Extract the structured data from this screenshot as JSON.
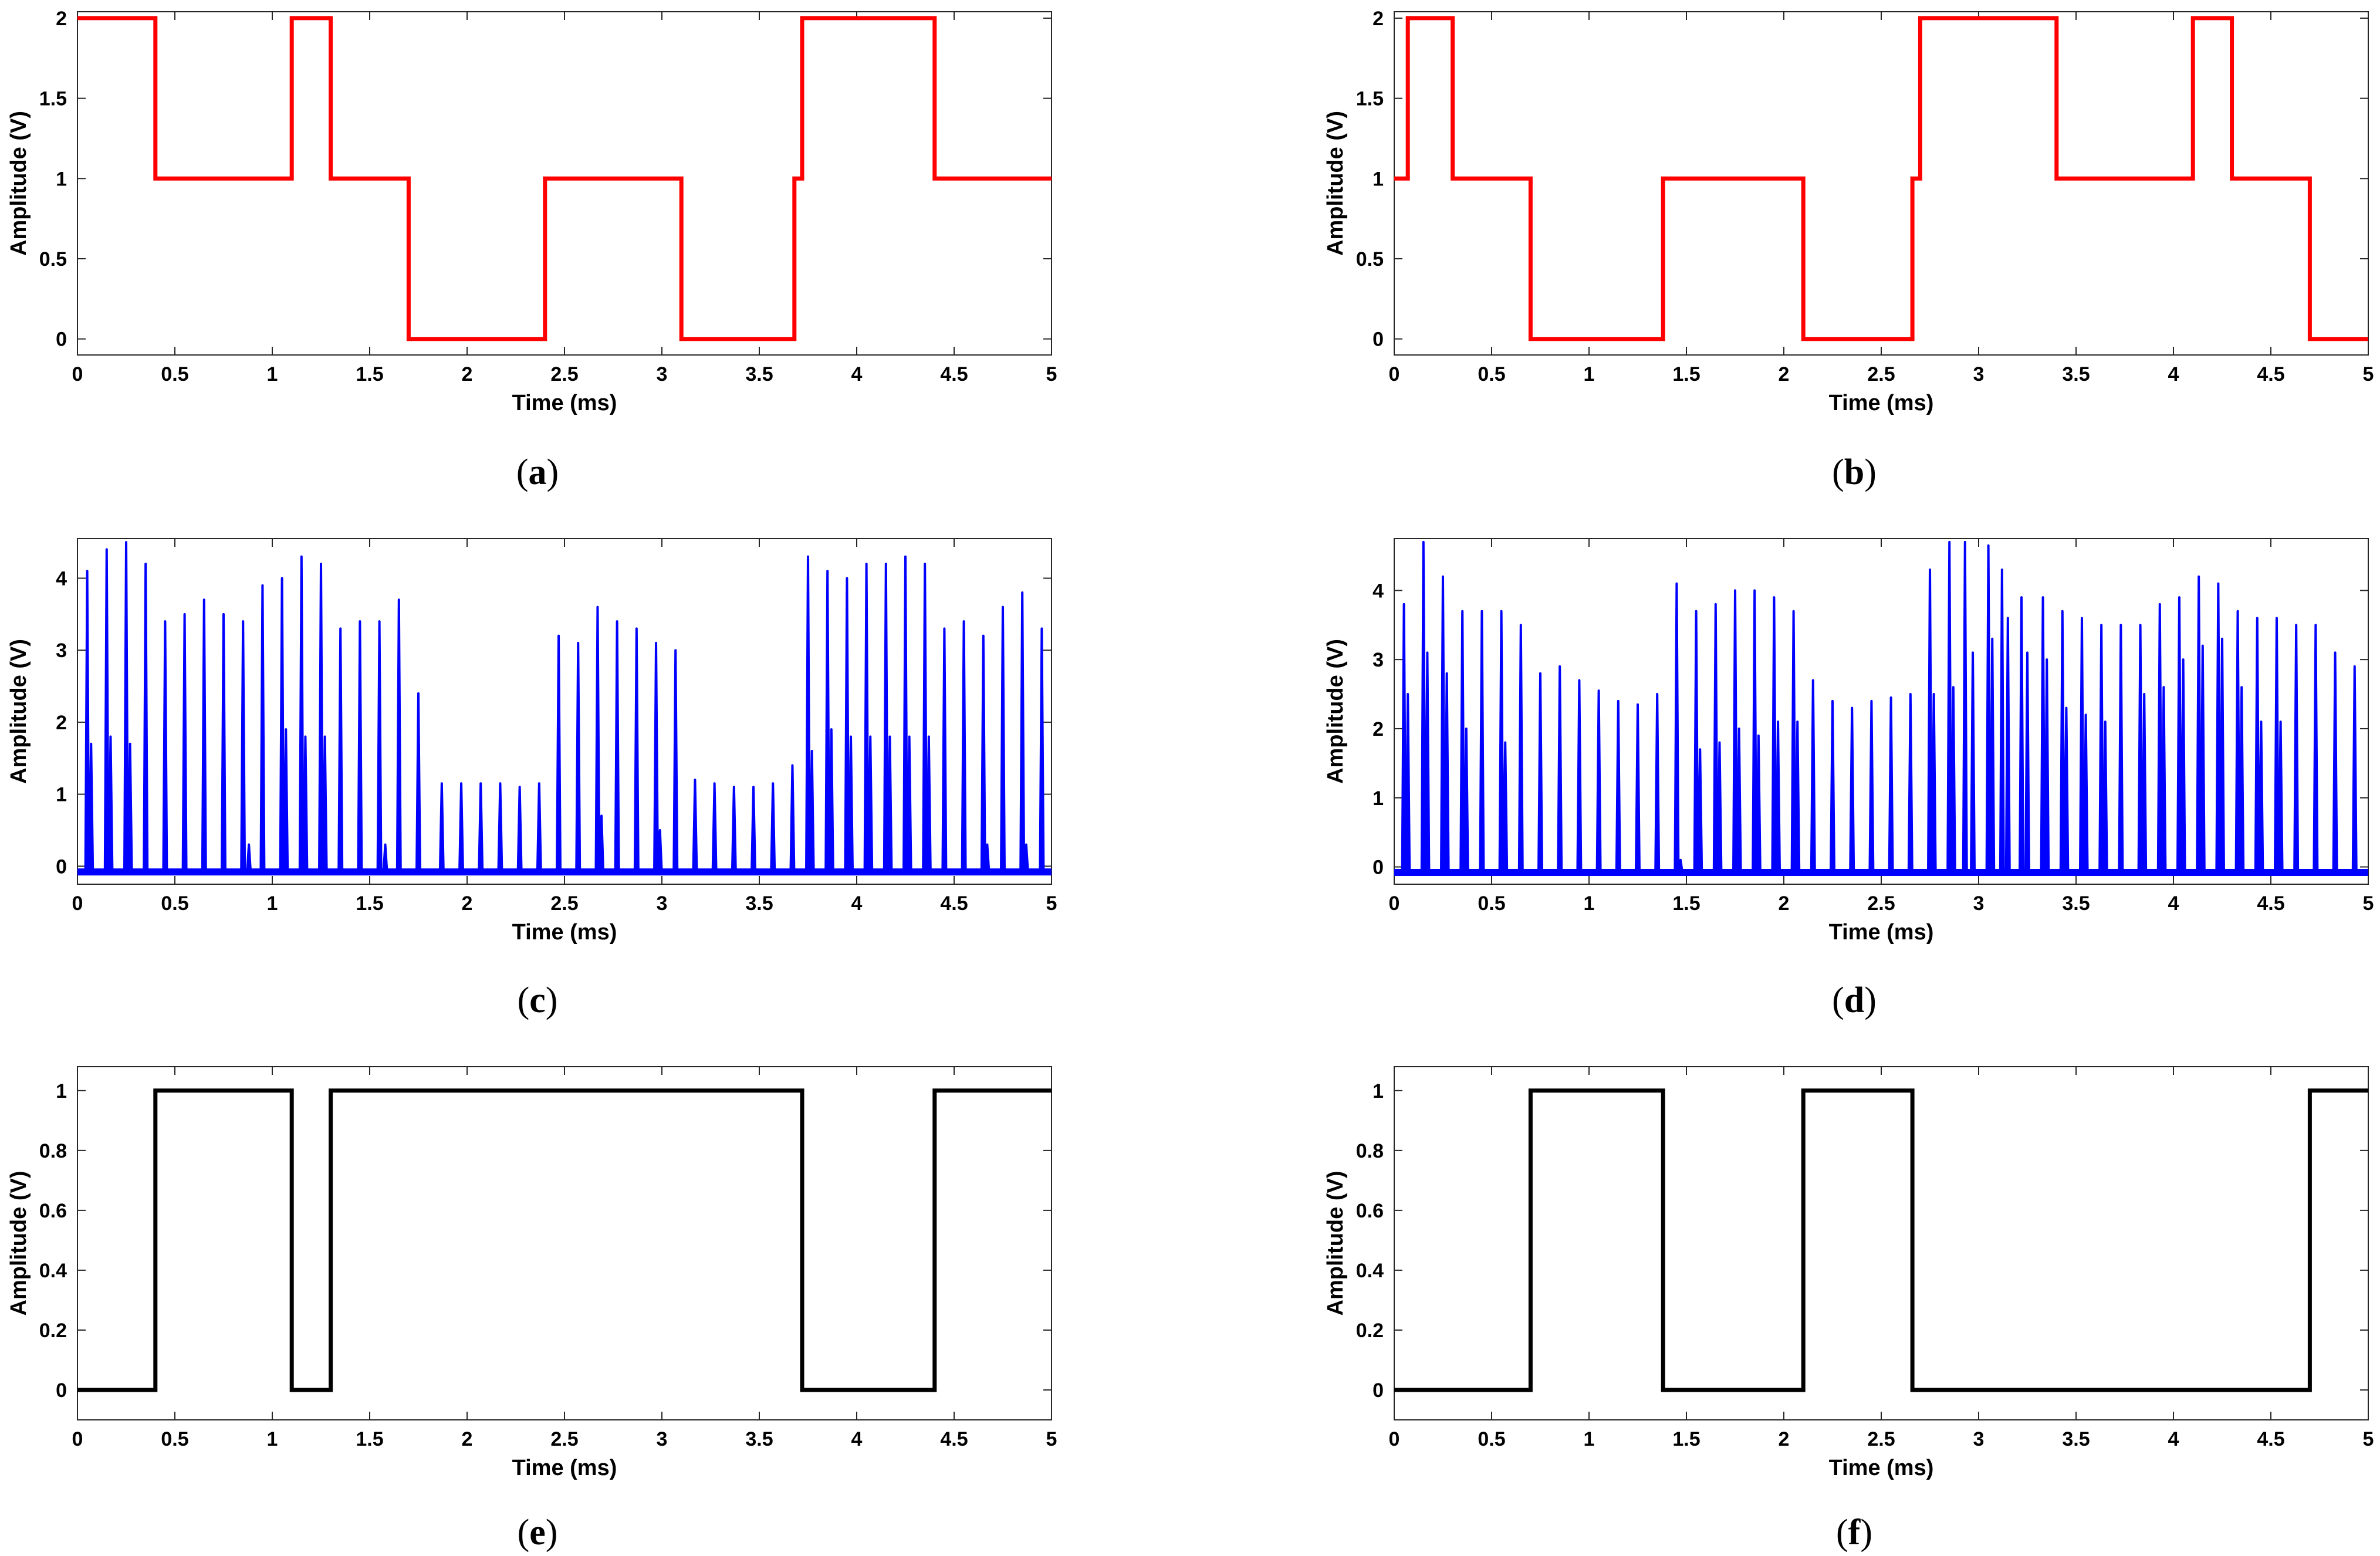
{
  "figure": {
    "captions": [
      "(a)",
      "(b)",
      "(c)",
      "(d)",
      "(e)",
      "(f)"
    ]
  },
  "chart_data": [
    {
      "id": "a",
      "type": "line",
      "caption": "(a)",
      "xlabel": "Time (ms)",
      "ylabel": "Amplitude (V)",
      "xlim": [
        0,
        5
      ],
      "ylim": [
        -0.1,
        2.04
      ],
      "grid": false,
      "xticks": [
        "0",
        "0.5",
        "1",
        "1.5",
        "2",
        "2.5",
        "3",
        "3.5",
        "4",
        "4.5",
        "5"
      ],
      "yticks": [
        "0",
        "0.5",
        "1",
        "1.5",
        "2"
      ],
      "color": "#ff0000",
      "stroke": "step",
      "series": [
        {
          "name": "a",
          "x": [
            0,
            0.4,
            0.4,
            1.1,
            1.1,
            1.3,
            1.3,
            1.7,
            1.7,
            2.4,
            2.4,
            3.1,
            3.1,
            3.68,
            3.68,
            3.72,
            3.72,
            4.4,
            4.4,
            5
          ],
          "y": [
            2,
            2,
            1,
            1,
            2,
            2,
            1,
            1,
            0,
            0,
            1,
            1,
            0,
            0,
            1,
            1,
            2,
            2,
            1,
            1
          ]
        }
      ]
    },
    {
      "id": "b",
      "type": "line",
      "caption": "(b)",
      "xlabel": "Time (ms)",
      "ylabel": "Amplitude (V)",
      "xlim": [
        0,
        5
      ],
      "ylim": [
        -0.1,
        2.04
      ],
      "grid": false,
      "xticks": [
        "0",
        "0.5",
        "1",
        "1.5",
        "2",
        "2.5",
        "3",
        "3.5",
        "4",
        "4.5",
        "5"
      ],
      "yticks": [
        "0",
        "0.5",
        "1",
        "1.5",
        "2"
      ],
      "color": "#ff0000",
      "stroke": "step",
      "series": [
        {
          "name": "b",
          "x": [
            0,
            0.07,
            0.07,
            0.3,
            0.3,
            0.7,
            0.7,
            1.38,
            1.38,
            2.1,
            2.1,
            2.66,
            2.66,
            2.7,
            2.7,
            3.4,
            3.4,
            4.1,
            4.1,
            4.3,
            4.3,
            4.7,
            4.7,
            5
          ],
          "y": [
            1,
            1,
            2,
            2,
            1,
            1,
            0,
            0,
            1,
            1,
            0,
            0,
            1,
            1,
            2,
            2,
            1,
            1,
            2,
            2,
            1,
            1,
            0,
            0
          ]
        }
      ]
    },
    {
      "id": "c",
      "type": "line",
      "caption": "(c)",
      "xlabel": "Time (ms)",
      "ylabel": "Amplitude (V)",
      "xlim": [
        0,
        5
      ],
      "ylim": [
        -0.25,
        4.55
      ],
      "grid": false,
      "xticks": [
        "0",
        "0.5",
        "1",
        "1.5",
        "2",
        "2.5",
        "3",
        "3.5",
        "4",
        "4.5",
        "5"
      ],
      "yticks": [
        "0",
        "1",
        "2",
        "3",
        "4"
      ],
      "color": "#0000ff",
      "stroke": "pulses",
      "baseline": -0.08,
      "pulses": [
        {
          "t": 0.05,
          "v": 4.1
        },
        {
          "t": 0.07,
          "v": 1.7
        },
        {
          "t": 0.15,
          "v": 4.4
        },
        {
          "t": 0.17,
          "v": 1.8
        },
        {
          "t": 0.25,
          "v": 4.5
        },
        {
          "t": 0.27,
          "v": 1.7
        },
        {
          "t": 0.35,
          "v": 4.2
        },
        {
          "t": 0.45,
          "v": 3.4
        },
        {
          "t": 0.55,
          "v": 3.5
        },
        {
          "t": 0.65,
          "v": 3.7
        },
        {
          "t": 0.75,
          "v": 3.5
        },
        {
          "t": 0.85,
          "v": 3.4
        },
        {
          "t": 0.88,
          "v": 0.3
        },
        {
          "t": 0.95,
          "v": 3.9
        },
        {
          "t": 1.05,
          "v": 4.0
        },
        {
          "t": 1.07,
          "v": 1.9
        },
        {
          "t": 1.15,
          "v": 4.3
        },
        {
          "t": 1.17,
          "v": 1.8
        },
        {
          "t": 1.25,
          "v": 4.2
        },
        {
          "t": 1.27,
          "v": 1.8
        },
        {
          "t": 1.35,
          "v": 3.3
        },
        {
          "t": 1.45,
          "v": 3.4
        },
        {
          "t": 1.55,
          "v": 3.4
        },
        {
          "t": 1.58,
          "v": 0.3
        },
        {
          "t": 1.65,
          "v": 3.7
        },
        {
          "t": 1.75,
          "v": 2.4
        },
        {
          "t": 1.87,
          "v": 1.15
        },
        {
          "t": 1.97,
          "v": 1.15
        },
        {
          "t": 2.07,
          "v": 1.15
        },
        {
          "t": 2.17,
          "v": 1.15
        },
        {
          "t": 2.27,
          "v": 1.1
        },
        {
          "t": 2.37,
          "v": 1.15
        },
        {
          "t": 2.47,
          "v": 3.2
        },
        {
          "t": 2.57,
          "v": 3.1
        },
        {
          "t": 2.67,
          "v": 3.6
        },
        {
          "t": 2.69,
          "v": 0.7
        },
        {
          "t": 2.77,
          "v": 3.4
        },
        {
          "t": 2.87,
          "v": 3.3
        },
        {
          "t": 2.97,
          "v": 3.1
        },
        {
          "t": 2.99,
          "v": 0.5
        },
        {
          "t": 3.07,
          "v": 3.0
        },
        {
          "t": 3.17,
          "v": 1.2
        },
        {
          "t": 3.27,
          "v": 1.15
        },
        {
          "t": 3.37,
          "v": 1.1
        },
        {
          "t": 3.47,
          "v": 1.1
        },
        {
          "t": 3.57,
          "v": 1.15
        },
        {
          "t": 3.67,
          "v": 1.4
        },
        {
          "t": 3.75,
          "v": 4.3
        },
        {
          "t": 3.77,
          "v": 1.6
        },
        {
          "t": 3.85,
          "v": 4.1
        },
        {
          "t": 3.87,
          "v": 1.9
        },
        {
          "t": 3.95,
          "v": 4.0
        },
        {
          "t": 3.97,
          "v": 1.8
        },
        {
          "t": 4.05,
          "v": 4.2
        },
        {
          "t": 4.07,
          "v": 1.8
        },
        {
          "t": 4.15,
          "v": 4.2
        },
        {
          "t": 4.17,
          "v": 1.8
        },
        {
          "t": 4.25,
          "v": 4.3
        },
        {
          "t": 4.27,
          "v": 1.8
        },
        {
          "t": 4.35,
          "v": 4.2
        },
        {
          "t": 4.37,
          "v": 1.8
        },
        {
          "t": 4.45,
          "v": 3.3
        },
        {
          "t": 4.55,
          "v": 3.4
        },
        {
          "t": 4.65,
          "v": 3.2
        },
        {
          "t": 4.67,
          "v": 0.3
        },
        {
          "t": 4.75,
          "v": 3.6
        },
        {
          "t": 4.85,
          "v": 3.8
        },
        {
          "t": 4.87,
          "v": 0.3
        },
        {
          "t": 4.95,
          "v": 3.3
        }
      ]
    },
    {
      "id": "d",
      "type": "line",
      "caption": "(d)",
      "xlabel": "Time (ms)",
      "ylabel": "Amplitude (V)",
      "xlim": [
        0,
        5
      ],
      "ylim": [
        -0.25,
        4.75
      ],
      "grid": false,
      "xticks": [
        "0",
        "0.5",
        "1",
        "1.5",
        "2",
        "2.5",
        "3",
        "3.5",
        "4",
        "4.5",
        "5"
      ],
      "yticks": [
        "0",
        "1",
        "2",
        "3",
        "4"
      ],
      "color": "#0000ff",
      "stroke": "pulses",
      "baseline": -0.08,
      "pulses": [
        {
          "t": 0.05,
          "v": 3.8
        },
        {
          "t": 0.07,
          "v": 2.5
        },
        {
          "t": 0.15,
          "v": 4.7
        },
        {
          "t": 0.17,
          "v": 3.1
        },
        {
          "t": 0.25,
          "v": 4.2
        },
        {
          "t": 0.27,
          "v": 2.8
        },
        {
          "t": 0.35,
          "v": 3.7
        },
        {
          "t": 0.37,
          "v": 2.0
        },
        {
          "t": 0.45,
          "v": 3.7
        },
        {
          "t": 0.55,
          "v": 3.7
        },
        {
          "t": 0.57,
          "v": 1.8
        },
        {
          "t": 0.65,
          "v": 3.5
        },
        {
          "t": 0.75,
          "v": 2.8
        },
        {
          "t": 0.85,
          "v": 2.9
        },
        {
          "t": 0.95,
          "v": 2.7
        },
        {
          "t": 1.05,
          "v": 2.55
        },
        {
          "t": 1.15,
          "v": 2.4
        },
        {
          "t": 1.25,
          "v": 2.35
        },
        {
          "t": 1.35,
          "v": 2.5
        },
        {
          "t": 1.45,
          "v": 4.1
        },
        {
          "t": 1.47,
          "v": 0.1
        },
        {
          "t": 1.55,
          "v": 3.7
        },
        {
          "t": 1.57,
          "v": 1.7
        },
        {
          "t": 1.65,
          "v": 3.8
        },
        {
          "t": 1.67,
          "v": 1.8
        },
        {
          "t": 1.75,
          "v": 4.0
        },
        {
          "t": 1.77,
          "v": 2.0
        },
        {
          "t": 1.85,
          "v": 4.0
        },
        {
          "t": 1.87,
          "v": 1.9
        },
        {
          "t": 1.95,
          "v": 3.9
        },
        {
          "t": 1.97,
          "v": 2.1
        },
        {
          "t": 2.05,
          "v": 3.7
        },
        {
          "t": 2.07,
          "v": 2.1
        },
        {
          "t": 2.15,
          "v": 2.7
        },
        {
          "t": 2.25,
          "v": 2.4
        },
        {
          "t": 2.35,
          "v": 2.3
        },
        {
          "t": 2.45,
          "v": 2.4
        },
        {
          "t": 2.55,
          "v": 2.45
        },
        {
          "t": 2.65,
          "v": 2.5
        },
        {
          "t": 2.75,
          "v": 4.3
        },
        {
          "t": 2.77,
          "v": 2.5
        },
        {
          "t": 2.85,
          "v": 4.7
        },
        {
          "t": 2.87,
          "v": 2.6
        },
        {
          "t": 2.93,
          "v": 4.7
        },
        {
          "t": 2.97,
          "v": 3.1
        },
        {
          "t": 3.05,
          "v": 4.65
        },
        {
          "t": 3.07,
          "v": 3.3
        },
        {
          "t": 3.12,
          "v": 4.3
        },
        {
          "t": 3.15,
          "v": 3.6
        },
        {
          "t": 3.22,
          "v": 3.9
        },
        {
          "t": 3.25,
          "v": 3.1
        },
        {
          "t": 3.33,
          "v": 3.9
        },
        {
          "t": 3.35,
          "v": 3.0
        },
        {
          "t": 3.43,
          "v": 3.7
        },
        {
          "t": 3.45,
          "v": 2.3
        },
        {
          "t": 3.53,
          "v": 3.6
        },
        {
          "t": 3.55,
          "v": 2.2
        },
        {
          "t": 3.63,
          "v": 3.5
        },
        {
          "t": 3.65,
          "v": 2.1
        },
        {
          "t": 3.73,
          "v": 3.5
        },
        {
          "t": 3.83,
          "v": 3.5
        },
        {
          "t": 3.85,
          "v": 2.5
        },
        {
          "t": 3.93,
          "v": 3.8
        },
        {
          "t": 3.95,
          "v": 2.6
        },
        {
          "t": 4.03,
          "v": 3.9
        },
        {
          "t": 4.05,
          "v": 3.0
        },
        {
          "t": 4.13,
          "v": 4.2
        },
        {
          "t": 4.15,
          "v": 3.2
        },
        {
          "t": 4.23,
          "v": 4.1
        },
        {
          "t": 4.25,
          "v": 3.3
        },
        {
          "t": 4.33,
          "v": 3.7
        },
        {
          "t": 4.35,
          "v": 2.6
        },
        {
          "t": 4.43,
          "v": 3.6
        },
        {
          "t": 4.45,
          "v": 2.1
        },
        {
          "t": 4.53,
          "v": 3.6
        },
        {
          "t": 4.55,
          "v": 2.1
        },
        {
          "t": 4.63,
          "v": 3.5
        },
        {
          "t": 4.73,
          "v": 3.5
        },
        {
          "t": 4.83,
          "v": 3.1
        },
        {
          "t": 4.93,
          "v": 2.9
        }
      ]
    },
    {
      "id": "e",
      "type": "line",
      "caption": "(e)",
      "xlabel": "Time (ms)",
      "ylabel": "Amplitude (V)",
      "xlim": [
        0,
        5
      ],
      "ylim": [
        -0.1,
        1.08
      ],
      "grid": false,
      "xticks": [
        "0",
        "0.5",
        "1",
        "1.5",
        "2",
        "2.5",
        "3",
        "3.5",
        "4",
        "4.5",
        "5"
      ],
      "yticks": [
        "0",
        "0.2",
        "0.4",
        "0.6",
        "0.8",
        "1"
      ],
      "color": "#000000",
      "stroke": "step",
      "series": [
        {
          "name": "e",
          "x": [
            0,
            0.4,
            0.4,
            1.1,
            1.1,
            1.3,
            1.3,
            3.72,
            3.72,
            4.4,
            4.4,
            5
          ],
          "y": [
            0,
            0,
            1,
            1,
            0,
            0,
            1,
            1,
            0,
            0,
            1,
            1
          ]
        }
      ]
    },
    {
      "id": "f",
      "type": "line",
      "caption": "(f)",
      "xlabel": "Time (ms)",
      "ylabel": "Amplitude (V)",
      "xlim": [
        0,
        5
      ],
      "ylim": [
        -0.1,
        1.08
      ],
      "grid": false,
      "xticks": [
        "0",
        "0.5",
        "1",
        "1.5",
        "2",
        "2.5",
        "3",
        "3.5",
        "4",
        "4.5",
        "5"
      ],
      "yticks": [
        "0",
        "0.2",
        "0.4",
        "0.6",
        "0.8",
        "1"
      ],
      "color": "#000000",
      "stroke": "step",
      "series": [
        {
          "name": "f",
          "x": [
            0,
            0.7,
            0.7,
            1.38,
            1.38,
            2.1,
            2.1,
            2.66,
            2.66,
            4.7,
            4.7,
            5
          ],
          "y": [
            0,
            0,
            1,
            1,
            0,
            0,
            1,
            1,
            0,
            0,
            1,
            1
          ]
        }
      ]
    }
  ]
}
